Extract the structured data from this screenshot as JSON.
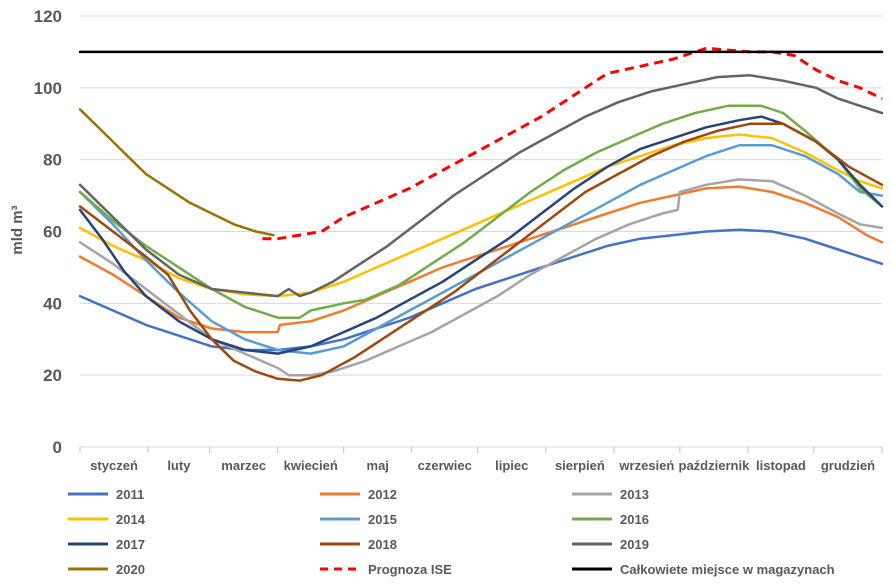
{
  "chart_data": {
    "type": "line",
    "title": "",
    "xlabel": "",
    "ylabel": "mld m³",
    "ylim": [
      0,
      120
    ],
    "yticks": [
      0,
      20,
      40,
      60,
      80,
      100,
      120
    ],
    "xlim": [
      0,
      365
    ],
    "grid": true,
    "legend_position": "bottom",
    "months": [
      {
        "label": "styczeń",
        "day": 0
      },
      {
        "label": "luty",
        "day": 31
      },
      {
        "label": "marzec",
        "day": 59
      },
      {
        "label": "kwiecień",
        "day": 90
      },
      {
        "label": "maj",
        "day": 120
      },
      {
        "label": "czerwiec",
        "day": 151
      },
      {
        "label": "lipiec",
        "day": 181
      },
      {
        "label": "sierpień",
        "day": 212
      },
      {
        "label": "wrzesień",
        "day": 243
      },
      {
        "label": "październik",
        "day": 273
      },
      {
        "label": "listopad",
        "day": 304
      },
      {
        "label": "grudzień",
        "day": 334
      }
    ],
    "series": [
      {
        "name": "2011",
        "color": "#4472C4",
        "dash": false,
        "points": [
          [
            0,
            42
          ],
          [
            15,
            38
          ],
          [
            30,
            34
          ],
          [
            45,
            31
          ],
          [
            60,
            28
          ],
          [
            75,
            27
          ],
          [
            90,
            27
          ],
          [
            105,
            28
          ],
          [
            120,
            30
          ],
          [
            135,
            33
          ],
          [
            150,
            36
          ],
          [
            165,
            40
          ],
          [
            180,
            44
          ],
          [
            195,
            47
          ],
          [
            210,
            50
          ],
          [
            225,
            53
          ],
          [
            240,
            56
          ],
          [
            255,
            58
          ],
          [
            270,
            59
          ],
          [
            285,
            60
          ],
          [
            300,
            60.5
          ],
          [
            315,
            60
          ],
          [
            330,
            58
          ],
          [
            345,
            55
          ],
          [
            365,
            51
          ]
        ]
      },
      {
        "name": "2012",
        "color": "#ED7D31",
        "dash": false,
        "points": [
          [
            0,
            53
          ],
          [
            15,
            48
          ],
          [
            30,
            42
          ],
          [
            45,
            36
          ],
          [
            60,
            33
          ],
          [
            75,
            32
          ],
          [
            90,
            32
          ],
          [
            91,
            34
          ],
          [
            105,
            35
          ],
          [
            120,
            38
          ],
          [
            135,
            42
          ],
          [
            150,
            46
          ],
          [
            165,
            50
          ],
          [
            180,
            53
          ],
          [
            195,
            56
          ],
          [
            210,
            59
          ],
          [
            225,
            62
          ],
          [
            240,
            65
          ],
          [
            255,
            68
          ],
          [
            270,
            70
          ],
          [
            285,
            72
          ],
          [
            300,
            72.5
          ],
          [
            315,
            71
          ],
          [
            330,
            68
          ],
          [
            345,
            64
          ],
          [
            358,
            59
          ],
          [
            365,
            57
          ]
        ]
      },
      {
        "name": "2013",
        "color": "#A5A5A5",
        "dash": false,
        "points": [
          [
            0,
            57
          ],
          [
            15,
            51
          ],
          [
            30,
            44
          ],
          [
            45,
            37
          ],
          [
            60,
            30
          ],
          [
            75,
            26
          ],
          [
            90,
            22
          ],
          [
            95,
            20
          ],
          [
            105,
            20
          ],
          [
            115,
            21
          ],
          [
            130,
            24
          ],
          [
            145,
            28
          ],
          [
            160,
            32
          ],
          [
            175,
            37
          ],
          [
            190,
            42
          ],
          [
            205,
            48
          ],
          [
            220,
            53
          ],
          [
            235,
            58
          ],
          [
            250,
            62
          ],
          [
            265,
            65
          ],
          [
            272,
            66
          ],
          [
            273,
            71
          ],
          [
            285,
            73
          ],
          [
            300,
            74.5
          ],
          [
            315,
            74
          ],
          [
            330,
            70
          ],
          [
            345,
            65
          ],
          [
            355,
            62
          ],
          [
            365,
            61
          ]
        ]
      },
      {
        "name": "2014",
        "color": "#FFC000",
        "dash": false,
        "points": [
          [
            0,
            61
          ],
          [
            15,
            56
          ],
          [
            30,
            52
          ],
          [
            45,
            47
          ],
          [
            60,
            44
          ],
          [
            75,
            42.5
          ],
          [
            90,
            42
          ],
          [
            105,
            43
          ],
          [
            120,
            46
          ],
          [
            135,
            50
          ],
          [
            150,
            54
          ],
          [
            165,
            58
          ],
          [
            180,
            62
          ],
          [
            195,
            66
          ],
          [
            210,
            70
          ],
          [
            225,
            74
          ],
          [
            240,
            78
          ],
          [
            255,
            81
          ],
          [
            270,
            84
          ],
          [
            285,
            86
          ],
          [
            300,
            87
          ],
          [
            315,
            86
          ],
          [
            330,
            82
          ],
          [
            345,
            77
          ],
          [
            355,
            74
          ],
          [
            365,
            72
          ]
        ]
      },
      {
        "name": "2015",
        "color": "#5B9BD5",
        "dash": false,
        "points": [
          [
            0,
            71
          ],
          [
            15,
            62
          ],
          [
            30,
            52
          ],
          [
            45,
            43
          ],
          [
            60,
            35
          ],
          [
            75,
            30
          ],
          [
            90,
            27
          ],
          [
            105,
            26
          ],
          [
            120,
            28
          ],
          [
            135,
            33
          ],
          [
            150,
            38
          ],
          [
            165,
            43
          ],
          [
            180,
            48
          ],
          [
            195,
            53
          ],
          [
            210,
            58
          ],
          [
            225,
            63
          ],
          [
            240,
            68
          ],
          [
            255,
            73
          ],
          [
            270,
            77
          ],
          [
            285,
            81
          ],
          [
            300,
            84
          ],
          [
            315,
            84
          ],
          [
            330,
            81
          ],
          [
            345,
            76
          ],
          [
            355,
            71
          ],
          [
            365,
            70
          ]
        ]
      },
      {
        "name": "2016",
        "color": "#70AD47",
        "dash": false,
        "points": [
          [
            0,
            71
          ],
          [
            15,
            63
          ],
          [
            30,
            56
          ],
          [
            45,
            50
          ],
          [
            60,
            44
          ],
          [
            75,
            39
          ],
          [
            90,
            36
          ],
          [
            100,
            36
          ],
          [
            105,
            38
          ],
          [
            120,
            40
          ],
          [
            130,
            41
          ],
          [
            145,
            45
          ],
          [
            160,
            51
          ],
          [
            175,
            57
          ],
          [
            190,
            64
          ],
          [
            205,
            71
          ],
          [
            220,
            77
          ],
          [
            235,
            82
          ],
          [
            250,
            86
          ],
          [
            265,
            90
          ],
          [
            280,
            93
          ],
          [
            295,
            95
          ],
          [
            310,
            95
          ],
          [
            320,
            93
          ],
          [
            330,
            88
          ],
          [
            345,
            80
          ],
          [
            355,
            72
          ],
          [
            365,
            67
          ]
        ]
      },
      {
        "name": "2017",
        "color": "#264478",
        "dash": false,
        "points": [
          [
            0,
            66
          ],
          [
            10,
            58
          ],
          [
            20,
            49
          ],
          [
            30,
            42
          ],
          [
            45,
            35
          ],
          [
            60,
            30
          ],
          [
            75,
            27
          ],
          [
            90,
            26
          ],
          [
            105,
            28
          ],
          [
            120,
            32
          ],
          [
            135,
            36
          ],
          [
            150,
            41
          ],
          [
            165,
            46
          ],
          [
            180,
            52
          ],
          [
            195,
            58
          ],
          [
            210,
            65
          ],
          [
            225,
            72
          ],
          [
            240,
            78
          ],
          [
            255,
            83
          ],
          [
            270,
            86
          ],
          [
            285,
            89
          ],
          [
            300,
            91
          ],
          [
            310,
            92
          ],
          [
            320,
            90
          ],
          [
            335,
            85
          ],
          [
            345,
            80
          ],
          [
            355,
            73
          ],
          [
            365,
            67
          ]
        ]
      },
      {
        "name": "2018",
        "color": "#9E480E",
        "dash": false,
        "points": [
          [
            0,
            67
          ],
          [
            15,
            60
          ],
          [
            30,
            53
          ],
          [
            40,
            48
          ],
          [
            50,
            38
          ],
          [
            60,
            30
          ],
          [
            70,
            24
          ],
          [
            80,
            21
          ],
          [
            90,
            19
          ],
          [
            100,
            18.5
          ],
          [
            110,
            20
          ],
          [
            125,
            25
          ],
          [
            140,
            31
          ],
          [
            155,
            37
          ],
          [
            170,
            43
          ],
          [
            185,
            50
          ],
          [
            200,
            57
          ],
          [
            215,
            64
          ],
          [
            230,
            71
          ],
          [
            245,
            76
          ],
          [
            260,
            81
          ],
          [
            275,
            85
          ],
          [
            290,
            88
          ],
          [
            305,
            90
          ],
          [
            320,
            90
          ],
          [
            335,
            85
          ],
          [
            350,
            78
          ],
          [
            365,
            73
          ]
        ]
      },
      {
        "name": "2019",
        "color": "#636363",
        "dash": false,
        "points": [
          [
            0,
            73
          ],
          [
            15,
            64
          ],
          [
            30,
            55
          ],
          [
            45,
            48
          ],
          [
            60,
            44
          ],
          [
            75,
            43
          ],
          [
            90,
            42
          ],
          [
            95,
            44
          ],
          [
            100,
            42
          ],
          [
            105,
            43
          ],
          [
            115,
            46
          ],
          [
            125,
            50
          ],
          [
            140,
            56
          ],
          [
            155,
            63
          ],
          [
            170,
            70
          ],
          [
            185,
            76
          ],
          [
            200,
            82
          ],
          [
            215,
            87
          ],
          [
            230,
            92
          ],
          [
            245,
            96
          ],
          [
            260,
            99
          ],
          [
            275,
            101
          ],
          [
            290,
            103
          ],
          [
            305,
            103.5
          ],
          [
            320,
            102
          ],
          [
            335,
            100
          ],
          [
            345,
            97
          ],
          [
            355,
            95
          ],
          [
            365,
            93
          ]
        ]
      },
      {
        "name": "2020",
        "color": "#997300",
        "dash": false,
        "points": [
          [
            0,
            94
          ],
          [
            10,
            88
          ],
          [
            20,
            82
          ],
          [
            30,
            76
          ],
          [
            40,
            72
          ],
          [
            50,
            68
          ],
          [
            60,
            65
          ],
          [
            70,
            62
          ],
          [
            80,
            60
          ],
          [
            88,
            59
          ]
        ]
      },
      {
        "name": "Prognoza ISE",
        "color": "#FF0000",
        "dash": true,
        "points": [
          [
            83,
            58
          ],
          [
            90,
            58
          ],
          [
            100,
            59
          ],
          [
            110,
            60
          ],
          [
            120,
            64
          ],
          [
            135,
            68
          ],
          [
            150,
            72
          ],
          [
            165,
            77
          ],
          [
            180,
            82
          ],
          [
            195,
            87
          ],
          [
            210,
            92
          ],
          [
            225,
            98
          ],
          [
            240,
            104
          ],
          [
            255,
            106
          ],
          [
            270,
            108
          ],
          [
            280,
            110
          ],
          [
            285,
            111
          ],
          [
            295,
            110.5
          ],
          [
            305,
            110
          ],
          [
            315,
            110
          ],
          [
            325,
            109
          ],
          [
            335,
            105
          ],
          [
            345,
            102
          ],
          [
            355,
            100
          ],
          [
            365,
            97
          ]
        ]
      },
      {
        "name": "Całkowiete miejsce w magazynach",
        "color": "#000000",
        "dash": false,
        "points": [
          [
            0,
            110
          ],
          [
            365,
            110
          ]
        ]
      }
    ]
  }
}
